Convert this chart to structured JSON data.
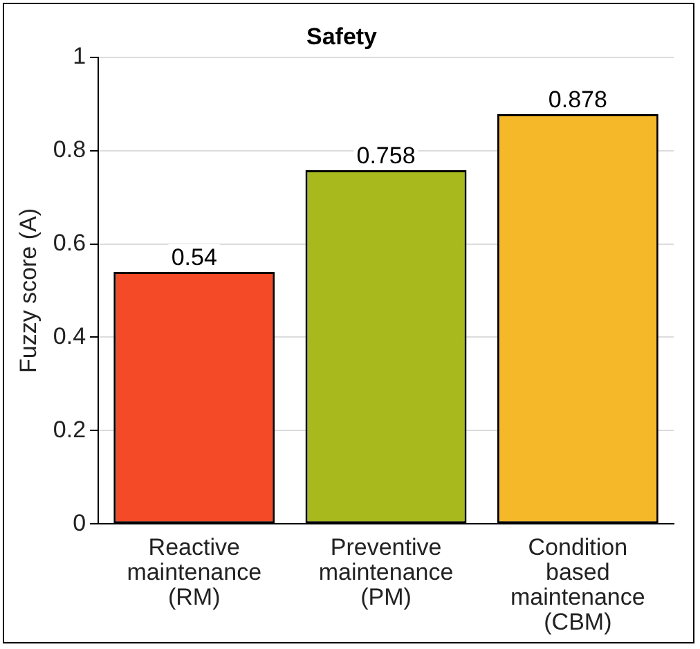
{
  "chart_data": {
    "type": "bar",
    "title": "Safety",
    "ylabel": "Fuzzy score (A)",
    "categories": [
      "Reactive maintenance (RM)",
      "Preventive maintenance (PM)",
      "Condition based maintenance (CBM)"
    ],
    "values": [
      0.54,
      0.758,
      0.878
    ],
    "colors": [
      "#f44a28",
      "#a8b91e",
      "#f4b828"
    ],
    "ylim": [
      0,
      1
    ],
    "yticks": [
      0,
      0.2,
      0.4,
      0.6,
      0.8,
      1
    ],
    "grid": "y",
    "data_labels": true,
    "legend": false
  }
}
